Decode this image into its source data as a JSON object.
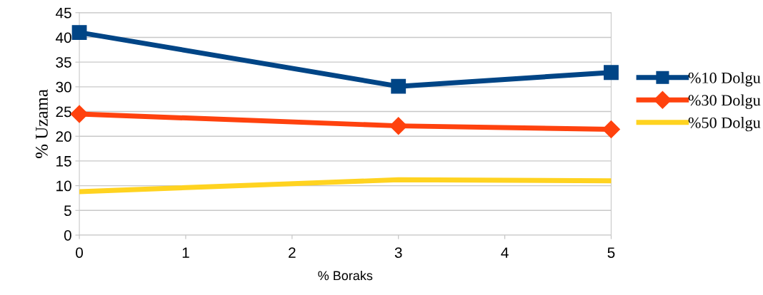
{
  "chart_data": {
    "type": "line",
    "xlabel": "% Boraks",
    "ylabel": "% Uzama",
    "x": [
      0,
      3,
      5
    ],
    "series": [
      {
        "name": "%10 Dolgu",
        "color": "#004586",
        "values": [
          41,
          30.1,
          32.9
        ],
        "marker": "square"
      },
      {
        "name": "%30 Dolgu",
        "color": "#ff420e",
        "values": [
          24.5,
          22.1,
          21.4
        ],
        "marker": "diamond"
      },
      {
        "name": "%50 Dolgu",
        "color": "#ffd320",
        "values": [
          8.8,
          11.2,
          11.0
        ],
        "marker": "none"
      }
    ],
    "xlim": [
      0,
      5
    ],
    "xticks": [
      0,
      1,
      2,
      3,
      4,
      5
    ],
    "ylim": [
      0,
      45
    ],
    "yticks": [
      0,
      5,
      10,
      15,
      20,
      25,
      30,
      35,
      40,
      45
    ],
    "grid": "y",
    "legend": "right",
    "line_style": "solid"
  }
}
